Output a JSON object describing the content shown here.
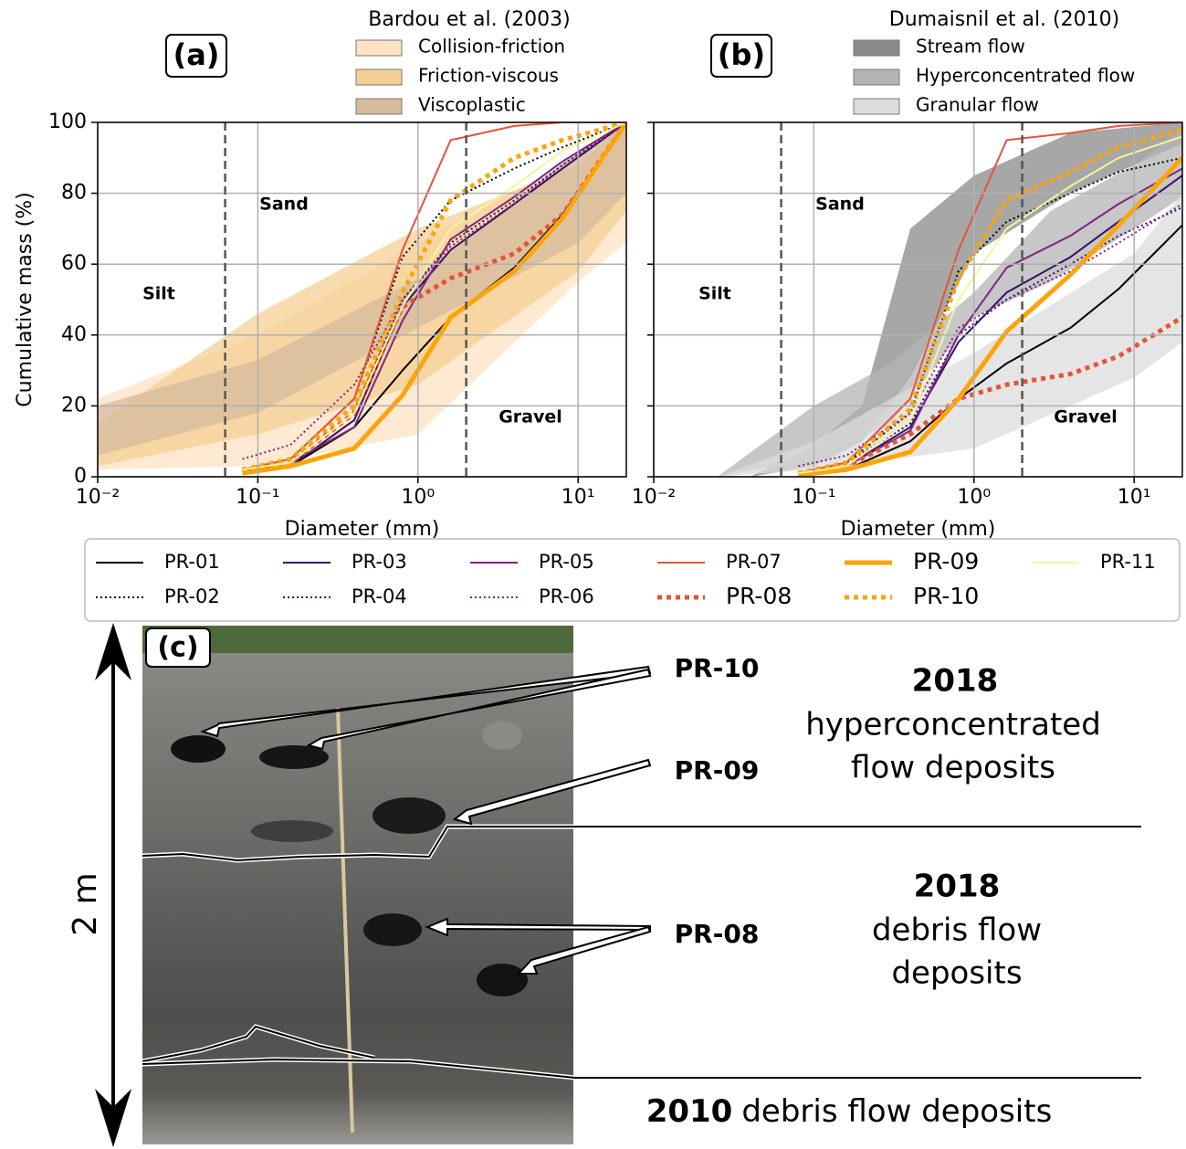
{
  "chart_data": [
    {
      "type": "line",
      "panel_label": "(a)",
      "band_legend_title": "Bardou et al. (2003)",
      "x_label": "Diameter (mm)",
      "y_label": "Cumulative mass (%)",
      "xlim": [
        0.01,
        20
      ],
      "ylim": [
        0,
        100
      ],
      "log_x": true,
      "grid": true,
      "xticks": [
        {
          "value": 0.01,
          "label": "10⁻²"
        },
        {
          "value": 0.1,
          "label": "10⁻¹"
        },
        {
          "value": 1,
          "label": "10⁰"
        },
        {
          "value": 10,
          "label": "10¹"
        }
      ],
      "yticks": [
        0,
        20,
        40,
        60,
        80,
        100
      ],
      "boundaries": [
        0.0625,
        2
      ],
      "regions": [
        "Silt",
        "Sand",
        "Gravel"
      ],
      "bands": [
        {
          "name": "Collision-friction",
          "color": "#fde3c4",
          "x": [
            0.01,
            0.1,
            1,
            10,
            20
          ],
          "lower": [
            2,
            3,
            12,
            55,
            66
          ],
          "upper": [
            22,
            40,
            66,
            90,
            100
          ]
        },
        {
          "name": "Friction-viscous",
          "color": "#f5cf94",
          "x": [
            0.01,
            0.1,
            1,
            10,
            20
          ],
          "lower": [
            3,
            12,
            26,
            58,
            75
          ],
          "upper": [
            15,
            46,
            70,
            88,
            100
          ]
        },
        {
          "name": "Viscoplastic",
          "color": "#d5bb9d",
          "x": [
            0.01,
            0.1,
            1,
            10,
            20
          ],
          "lower": [
            6,
            18,
            42,
            66,
            80
          ],
          "upper": [
            20,
            33,
            56,
            92,
            100
          ]
        }
      ],
      "x": [
        0.08,
        0.16,
        0.4,
        0.8,
        1.6,
        4,
        8,
        20
      ],
      "series": [
        {
          "name": "PR-01",
          "color": "#000000",
          "dash": "solid",
          "width": 2,
          "values": [
            2,
            3,
            14,
            30,
            45,
            59,
            74,
            100
          ]
        },
        {
          "name": "PR-02",
          "color": "#000000",
          "dash": "dotted",
          "width": 2,
          "values": [
            2,
            5,
            22,
            62,
            78,
            87,
            93,
            100
          ]
        },
        {
          "name": "PR-03",
          "color": "#341069",
          "dash": "solid",
          "width": 2,
          "values": [
            2,
            3,
            16,
            48,
            64,
            77,
            87,
            100
          ]
        },
        {
          "name": "PR-04",
          "color": "#341069",
          "dash": "dotted",
          "width": 2,
          "values": [
            2,
            4,
            18,
            50,
            66,
            78,
            88,
            100
          ]
        },
        {
          "name": "PR-05",
          "color": "#7e2482",
          "dash": "solid",
          "width": 2,
          "values": [
            2,
            4,
            14,
            44,
            67,
            79,
            89,
            100
          ]
        },
        {
          "name": "PR-06",
          "color": "#7e2482",
          "dash": "dotted",
          "width": 2,
          "values": [
            5,
            9,
            26,
            50,
            65,
            77,
            88,
            100
          ]
        },
        {
          "name": "PR-07",
          "color": "#e5533a",
          "dash": "solid",
          "width": 2,
          "values": [
            2,
            5,
            22,
            64,
            95,
            99,
            100,
            100
          ]
        },
        {
          "name": "PR-08",
          "color": "#e5533a",
          "dash": "dotted",
          "width": 5,
          "values": [
            2,
            4,
            18,
            48,
            56,
            63,
            74,
            100
          ]
        },
        {
          "name": "PR-09",
          "color": "#fca50a",
          "dash": "solid",
          "width": 5,
          "values": [
            1,
            3,
            8,
            23,
            45,
            58,
            73,
            100
          ]
        },
        {
          "name": "PR-10",
          "color": "#fca50a",
          "dash": "dotted",
          "width": 5,
          "values": [
            2,
            5,
            20,
            52,
            78,
            90,
            95,
            100
          ]
        },
        {
          "name": "PR-11",
          "color": "#f6f59a",
          "dash": "solid",
          "width": 2,
          "values": [
            2,
            4,
            18,
            48,
            70,
            82,
            92,
            100
          ]
        }
      ]
    },
    {
      "type": "line",
      "panel_label": "(b)",
      "band_legend_title": "Dumaisnil et al. (2010)",
      "x_label": "Diameter (mm)",
      "xlim": [
        0.01,
        20
      ],
      "ylim": [
        0,
        100
      ],
      "log_x": true,
      "grid": true,
      "xticks": [
        {
          "value": 0.01,
          "label": "10⁻²"
        },
        {
          "value": 0.1,
          "label": "10⁻¹"
        },
        {
          "value": 1,
          "label": "10⁰"
        },
        {
          "value": 10,
          "label": "10¹"
        }
      ],
      "yticks": [
        0,
        20,
        40,
        60,
        80,
        100
      ],
      "boundaries": [
        0.0625,
        2
      ],
      "regions": [
        "Silt",
        "Sand",
        "Gravel"
      ],
      "bands": [
        {
          "name": "Stream flow",
          "color": "#8a8a8a",
          "x": [
            0.04,
            0.1,
            0.2,
            0.4,
            1,
            4,
            20
          ],
          "lower": [
            0,
            3,
            10,
            28,
            63,
            80,
            94
          ],
          "upper": [
            0,
            9,
            20,
            70,
            85,
            97,
            100
          ]
        },
        {
          "name": "Hyperconcentrated flow",
          "color": "#b4b4b4",
          "x": [
            0.025,
            0.1,
            0.3,
            1,
            3,
            10,
            20
          ],
          "lower": [
            0,
            5,
            15,
            45,
            55,
            70,
            79
          ],
          "upper": [
            0,
            20,
            32,
            52,
            75,
            88,
            98
          ]
        },
        {
          "name": "Granular flow",
          "color": "#dcdcdc",
          "x": [
            0.025,
            0.1,
            1,
            10,
            20
          ],
          "lower": [
            0,
            2,
            8,
            28,
            38
          ],
          "upper": [
            0,
            10,
            35,
            63,
            80
          ]
        }
      ],
      "x": [
        0.08,
        0.16,
        0.4,
        0.8,
        1.6,
        4,
        8,
        20
      ],
      "series": [
        {
          "color": "#000000",
          "dash": "solid",
          "width": 2,
          "values": [
            1,
            2,
            10,
            22,
            32,
            42,
            53,
            71
          ]
        },
        {
          "color": "#000000",
          "dash": "dotted",
          "width": 2,
          "values": [
            1,
            4,
            18,
            58,
            72,
            80,
            86,
            90
          ]
        },
        {
          "color": "#341069",
          "dash": "solid",
          "width": 2,
          "values": [
            1,
            3,
            14,
            38,
            52,
            62,
            72,
            85
          ]
        },
        {
          "color": "#341069",
          "dash": "dotted",
          "width": 2,
          "values": [
            1,
            4,
            15,
            40,
            50,
            60,
            68,
            76
          ]
        },
        {
          "color": "#7e2482",
          "dash": "solid",
          "width": 2,
          "values": [
            1,
            3,
            13,
            40,
            59,
            68,
            77,
            87
          ]
        },
        {
          "color": "#7e2482",
          "dash": "dotted",
          "width": 2,
          "values": [
            3,
            6,
            18,
            42,
            50,
            58,
            66,
            77
          ]
        },
        {
          "color": "#e5533a",
          "dash": "solid",
          "width": 2,
          "values": [
            1,
            4,
            22,
            64,
            95,
            97,
            99,
            100
          ]
        },
        {
          "color": "#e5533a",
          "dash": "dotted",
          "width": 5,
          "values": [
            1,
            3,
            12,
            22,
            26,
            29,
            34,
            45
          ]
        },
        {
          "color": "#fca50a",
          "dash": "solid",
          "width": 5,
          "values": [
            0.5,
            2,
            7,
            22,
            41,
            57,
            71,
            90
          ]
        },
        {
          "color": "#fca50a",
          "dash": "dotted",
          "width": 5,
          "values": [
            1,
            4,
            19,
            56,
            78,
            86,
            93,
            98
          ]
        },
        {
          "color": "#f6f59a",
          "dash": "solid",
          "width": 2,
          "values": [
            1,
            3,
            16,
            50,
            70,
            82,
            90,
            96
          ]
        }
      ]
    }
  ],
  "photo_panel": {
    "label": "(c)",
    "scale": "2 m",
    "samples": [
      "PR-10",
      "PR-09",
      "PR-08"
    ],
    "units": [
      {
        "year": "2018",
        "lines": [
          "hyperconcentrated",
          "flow deposits"
        ]
      },
      {
        "year": "2018",
        "lines": [
          "debris flow",
          "deposits"
        ]
      },
      {
        "year": "2010",
        "lines": [
          "debris flow deposits"
        ]
      }
    ]
  }
}
